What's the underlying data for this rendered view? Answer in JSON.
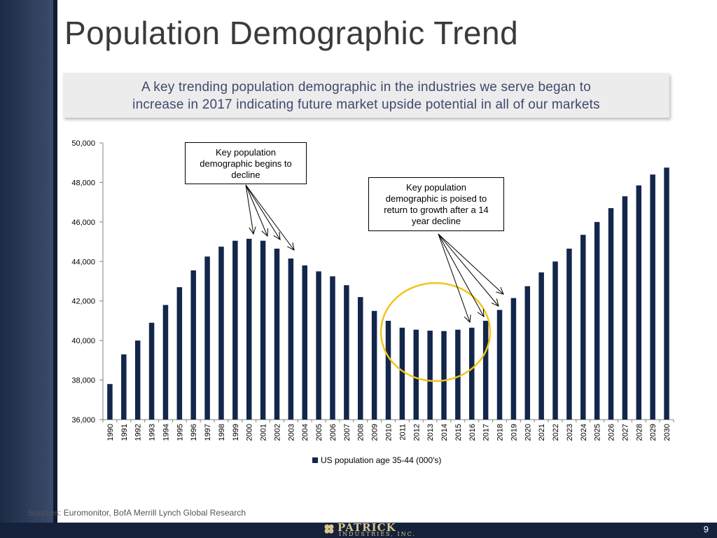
{
  "slide": {
    "title": "Population Demographic Trend",
    "subtitle_line1": "A key trending population demographic in the industries we serve began to",
    "subtitle_line2": "increase in 2017 indicating future market upside potential in all of our markets",
    "sources": "Sources: Euromonitor, BofA Merrill Lynch Global Research",
    "page_number": "9",
    "logo_name": "PATRICK",
    "logo_sub": "INDUSTRIES, INC.",
    "accent_color": "#1c2a44",
    "bar_color": "#13264b",
    "circle_color": "#f2c418"
  },
  "callouts": {
    "first": [
      "Key population",
      "demographic begins to",
      "decline"
    ],
    "second": [
      "Key population",
      "demographic is poised to",
      "return to growth after a 14",
      "year decline"
    ]
  },
  "chart_data": {
    "type": "bar",
    "title": "",
    "xlabel": "",
    "ylabel": "",
    "ylim": [
      36000,
      50000
    ],
    "yticks": [
      "36,000",
      "38,000",
      "40,000",
      "42,000",
      "44,000",
      "46,000",
      "48,000",
      "50,000"
    ],
    "grid": false,
    "legend_position": "bottom",
    "categories": [
      "1990",
      "1991",
      "1992",
      "1993",
      "1994",
      "1995",
      "1996",
      "1997",
      "1998",
      "1999",
      "2000",
      "2001",
      "2002",
      "2003",
      "2004",
      "2005",
      "2006",
      "2007",
      "2008",
      "2009",
      "2010",
      "2011",
      "2012",
      "2013",
      "2014",
      "2015",
      "2016",
      "2017",
      "2018",
      "2019",
      "2020",
      "2021",
      "2022",
      "2023",
      "2024",
      "2025",
      "2026",
      "2027",
      "2028",
      "2029",
      "2030"
    ],
    "series": [
      {
        "name": "US population age 35-44 (000's)",
        "values": [
          37800,
          39300,
          40000,
          40900,
          41800,
          42700,
          43550,
          44250,
          44750,
          45050,
          45150,
          45050,
          44650,
          44150,
          43800,
          43500,
          43250,
          42800,
          42200,
          41500,
          41000,
          40650,
          40550,
          40500,
          40480,
          40550,
          40650,
          41000,
          41550,
          42150,
          42750,
          43450,
          44000,
          44650,
          45350,
          46000,
          46700,
          47300,
          47850,
          48400,
          48750
        ]
      }
    ]
  }
}
